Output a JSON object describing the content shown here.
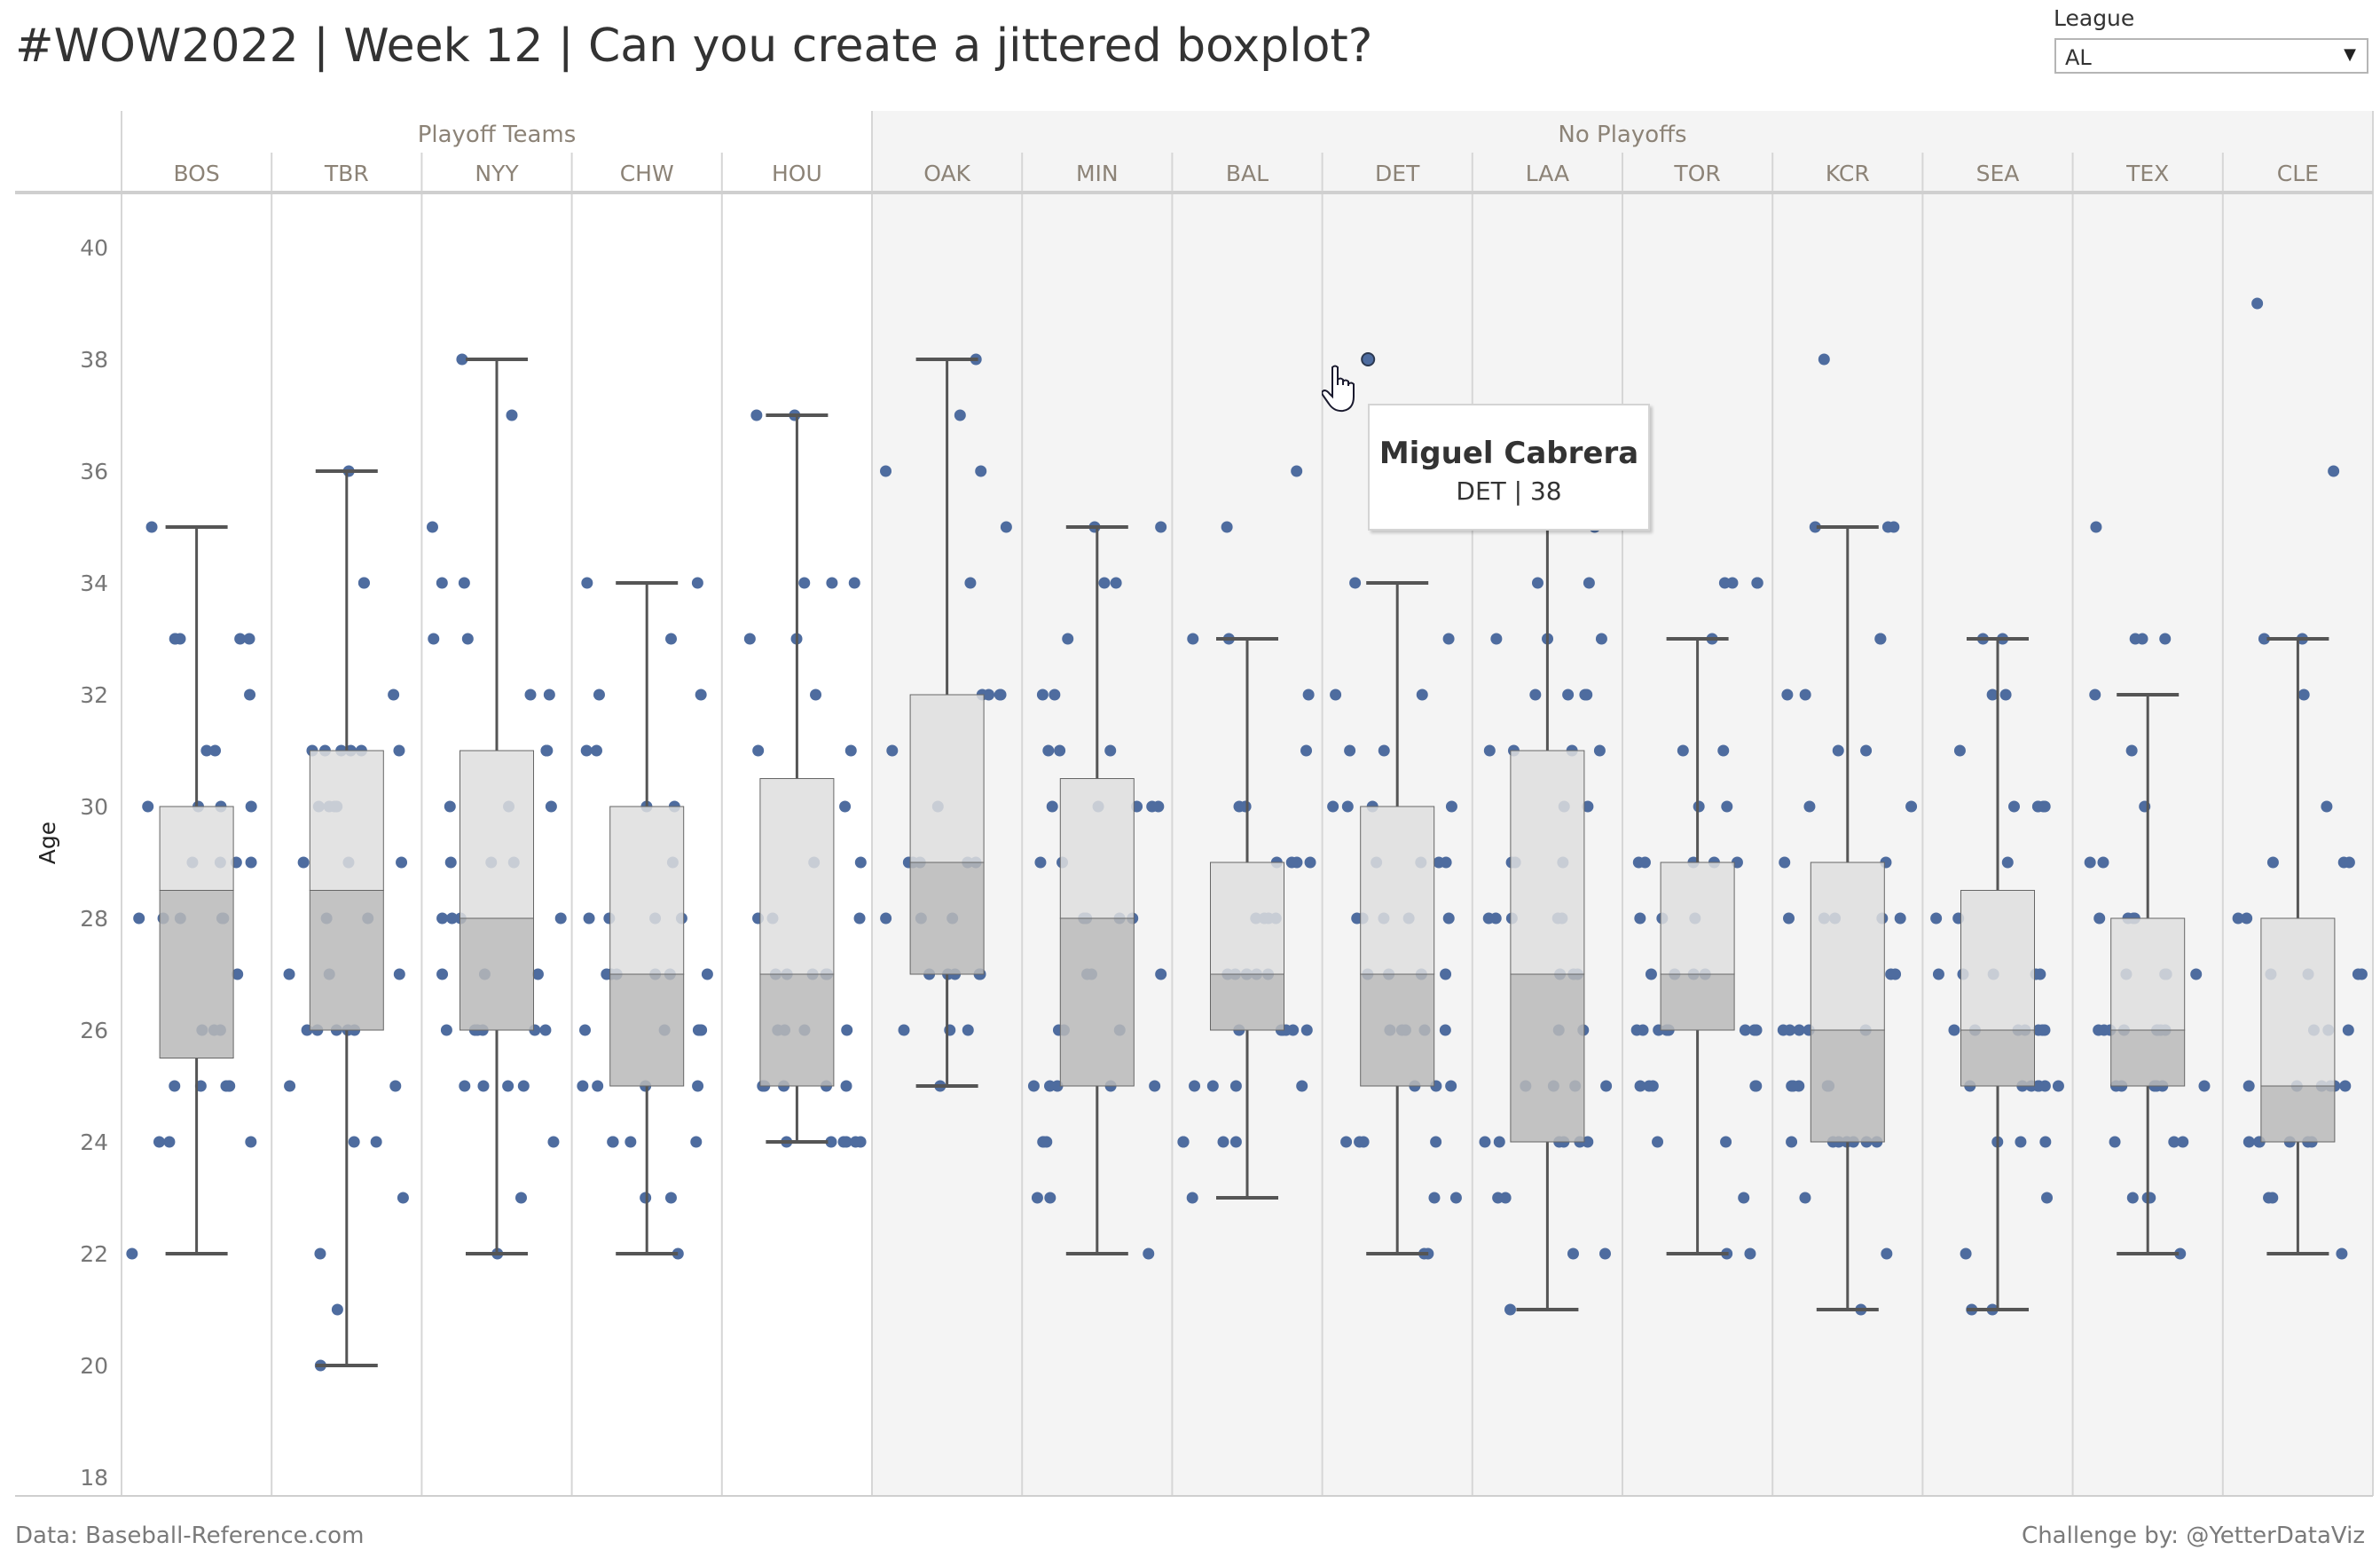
{
  "title": "#WOW2022  |  Week 12  |  Can you create a jittered boxplot?",
  "filter": {
    "label": "League",
    "value": "AL"
  },
  "footer": {
    "source": "Data: Baseball-Reference.com",
    "credit": "Challenge by: @YetterDataViz"
  },
  "tooltip": {
    "name": "Miguel Cabrera",
    "detail": "DET | 38"
  },
  "colors": {
    "dot": "#4e6c9f",
    "box_upper": "#dedede",
    "box_lower": "#b9b9b9",
    "whisker": "#555555",
    "no_playoffs_bg": "#f4f4f4",
    "header_text": "#8c8377"
  },
  "chart_data": {
    "type": "boxplot-jitter",
    "ylabel": "Age",
    "ylim": [
      18,
      40.5
    ],
    "yticks": [
      40,
      38,
      36,
      34,
      32,
      30,
      28,
      26,
      24,
      22,
      20,
      18
    ],
    "groups": [
      {
        "label": "Playoff Teams",
        "teams": [
          "BOS",
          "TBR",
          "NYY",
          "CHW",
          "HOU"
        ]
      },
      {
        "label": "No Playoffs",
        "teams": [
          "OAK",
          "MIN",
          "BAL",
          "DET",
          "LAA",
          "TOR",
          "KCR",
          "SEA",
          "TEX",
          "CLE"
        ]
      }
    ],
    "teams": [
      {
        "team": "BOS",
        "box": {
          "low": 22,
          "q1": 25.5,
          "median": 28.5,
          "q3": 30,
          "high": 35
        },
        "age_counts": {
          "35": 1,
          "33": 5,
          "32": 1,
          "31": 2,
          "30": 4,
          "29": 4,
          "28": 5,
          "27": 1,
          "26": 3,
          "25": 5,
          "24": 3,
          "22": 1
        }
      },
      {
        "team": "TBR",
        "box": {
          "low": 20,
          "q1": 26,
          "median": 28.5,
          "q3": 31,
          "high": 36
        },
        "age_counts": {
          "36": 1,
          "34": 2,
          "32": 1,
          "31": 6,
          "30": 4,
          "29": 3,
          "28": 2,
          "27": 3,
          "26": 5,
          "25": 2,
          "24": 2,
          "23": 1,
          "22": 1,
          "21": 1,
          "20": 1
        }
      },
      {
        "team": "NYY",
        "box": {
          "low": 22,
          "q1": 26,
          "median": 28,
          "q3": 31,
          "high": 38
        },
        "age_counts": {
          "38": 1,
          "37": 1,
          "35": 1,
          "34": 2,
          "33": 2,
          "32": 2,
          "31": 3,
          "30": 3,
          "29": 3,
          "28": 4,
          "27": 3,
          "26": 6,
          "25": 4,
          "24": 1,
          "23": 1,
          "22": 1
        }
      },
      {
        "team": "CHW",
        "box": {
          "low": 22,
          "q1": 25,
          "median": 27,
          "q3": 30,
          "high": 34
        },
        "age_counts": {
          "34": 2,
          "33": 1,
          "32": 2,
          "31": 2,
          "30": 2,
          "29": 1,
          "28": 4,
          "27": 6,
          "26": 5,
          "25": 4,
          "24": 4,
          "23": 2,
          "22": 1
        }
      },
      {
        "team": "HOU",
        "box": {
          "low": 24,
          "q1": 25,
          "median": 27,
          "q3": 30.5,
          "high": 37
        },
        "age_counts": {
          "37": 2,
          "34": 3,
          "33": 2,
          "32": 1,
          "31": 2,
          "30": 1,
          "29": 2,
          "28": 3,
          "27": 5,
          "26": 4,
          "25": 5,
          "24": 6
        }
      },
      {
        "team": "OAK",
        "box": {
          "low": 25,
          "q1": 27,
          "median": 29,
          "q3": 32,
          "high": 38
        },
        "age_counts": {
          "38": 1,
          "37": 1,
          "36": 2,
          "35": 1,
          "34": 1,
          "32": 4,
          "31": 1,
          "30": 1,
          "29": 5,
          "28": 3,
          "27": 5,
          "26": 3,
          "25": 1
        }
      },
      {
        "team": "MIN",
        "box": {
          "low": 22,
          "q1": 25,
          "median": 28,
          "q3": 30.5,
          "high": 35
        },
        "age_counts": {
          "35": 2,
          "34": 2,
          "33": 1,
          "32": 2,
          "31": 3,
          "30": 5,
          "29": 2,
          "28": 4,
          "27": 3,
          "26": 3,
          "25": 5,
          "24": 3,
          "23": 2,
          "22": 1
        }
      },
      {
        "team": "BAL",
        "box": {
          "low": 23,
          "q1": 26,
          "median": 27,
          "q3": 29,
          "high": 33
        },
        "age_counts": {
          "36": 1,
          "35": 1,
          "33": 2,
          "32": 1,
          "31": 1,
          "30": 2,
          "29": 4,
          "28": 4,
          "27": 6,
          "26": 6,
          "25": 4,
          "24": 4,
          "23": 1
        }
      },
      {
        "team": "DET",
        "box": {
          "low": 22,
          "q1": 25,
          "median": 27,
          "q3": 30,
          "high": 34
        },
        "age_counts": {
          "38": 1,
          "34": 1,
          "33": 1,
          "32": 2,
          "31": 2,
          "30": 4,
          "29": 4,
          "28": 5,
          "27": 4,
          "26": 5,
          "25": 3,
          "24": 4,
          "23": 2,
          "22": 2
        }
      },
      {
        "team": "LAA",
        "box": {
          "low": 21,
          "q1": 24,
          "median": 27,
          "q3": 31,
          "high": 36
        },
        "age_counts": {
          "36": 1,
          "35": 1,
          "34": 2,
          "33": 3,
          "32": 4,
          "31": 4,
          "30": 2,
          "29": 3,
          "28": 5,
          "27": 3,
          "26": 2,
          "25": 4,
          "24": 6,
          "23": 2,
          "22": 2,
          "21": 1
        }
      },
      {
        "team": "TOR",
        "box": {
          "low": 22,
          "q1": 26,
          "median": 27,
          "q3": 29,
          "high": 33
        },
        "age_counts": {
          "34": 4,
          "33": 1,
          "31": 2,
          "30": 2,
          "29": 5,
          "28": 3,
          "27": 4,
          "26": 8,
          "25": 5,
          "24": 2,
          "23": 1,
          "22": 2
        }
      },
      {
        "team": "KCR",
        "box": {
          "low": 21,
          "q1": 24,
          "median": 26,
          "q3": 29,
          "high": 35
        },
        "age_counts": {
          "38": 1,
          "35": 3,
          "33": 2,
          "32": 2,
          "31": 2,
          "30": 2,
          "29": 2,
          "28": 5,
          "27": 2,
          "26": 5,
          "25": 5,
          "24": 7,
          "23": 1,
          "22": 1,
          "21": 1
        }
      },
      {
        "team": "SEA",
        "box": {
          "low": 21,
          "q1": 25,
          "median": 26,
          "q3": 28.5,
          "high": 33
        },
        "age_counts": {
          "33": 2,
          "32": 2,
          "31": 1,
          "30": 5,
          "29": 1,
          "28": 2,
          "27": 5,
          "26": 7,
          "25": 7,
          "24": 3,
          "23": 1,
          "22": 1,
          "21": 2
        }
      },
      {
        "team": "TEX",
        "box": {
          "low": 22,
          "q1": 25,
          "median": 26,
          "q3": 28,
          "high": 32
        },
        "age_counts": {
          "35": 1,
          "33": 3,
          "32": 1,
          "31": 1,
          "30": 1,
          "29": 2,
          "28": 4,
          "27": 4,
          "26": 8,
          "25": 6,
          "24": 3,
          "23": 3,
          "22": 1
        }
      },
      {
        "team": "CLE",
        "box": {
          "low": 22,
          "q1": 24,
          "median": 25,
          "q3": 28,
          "high": 33
        },
        "age_counts": {
          "39": 1,
          "36": 1,
          "33": 2,
          "32": 1,
          "30": 1,
          "29": 3,
          "28": 2,
          "27": 4,
          "26": 3,
          "25": 6,
          "24": 6,
          "23": 2,
          "22": 1
        }
      }
    ],
    "highlight": {
      "team": "DET",
      "age": 38
    }
  }
}
